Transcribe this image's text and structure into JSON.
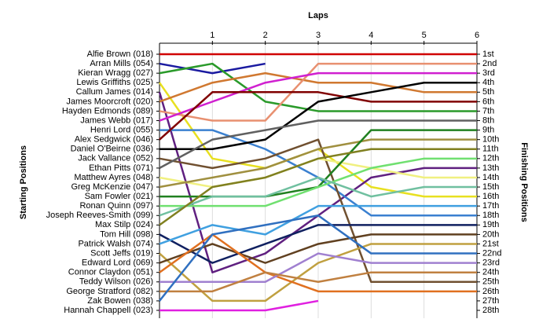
{
  "chart_data": {
    "type": "line",
    "x_label": "Laps",
    "y_label": "Starting Positions",
    "y2_label": "Finishing Positions",
    "x": [
      0,
      1,
      2,
      3,
      4,
      5,
      6
    ],
    "xlim": [
      0,
      6
    ],
    "xticks": [
      1,
      2,
      3,
      4,
      5,
      6
    ],
    "ylim": [
      1,
      28
    ],
    "y_inverted": true,
    "grid": true,
    "yticks": [
      {
        "value": 1,
        "label": "1st"
      },
      {
        "value": 2,
        "label": "2nd"
      },
      {
        "value": 3,
        "label": "3rd"
      },
      {
        "value": 4,
        "label": "4th"
      },
      {
        "value": 5,
        "label": "5th"
      },
      {
        "value": 6,
        "label": "6th"
      },
      {
        "value": 7,
        "label": "7th"
      },
      {
        "value": 8,
        "label": "8th"
      },
      {
        "value": 9,
        "label": "9th"
      },
      {
        "value": 10,
        "label": "10th"
      },
      {
        "value": 11,
        "label": "11th"
      },
      {
        "value": 12,
        "label": "12th"
      },
      {
        "value": 13,
        "label": "13th"
      },
      {
        "value": 14,
        "label": "14th"
      },
      {
        "value": 15,
        "label": "15th"
      },
      {
        "value": 16,
        "label": "16th"
      },
      {
        "value": 17,
        "label": "17th"
      },
      {
        "value": 18,
        "label": "18th"
      },
      {
        "value": 19,
        "label": "19th"
      },
      {
        "value": 20,
        "label": "20th"
      },
      {
        "value": 21,
        "label": "21st"
      },
      {
        "value": 22,
        "label": "22nd"
      },
      {
        "value": 23,
        "label": "23rd"
      },
      {
        "value": 24,
        "label": "24th"
      },
      {
        "value": 25,
        "label": "25th"
      },
      {
        "value": 26,
        "label": "26th"
      },
      {
        "value": 27,
        "label": "27th"
      },
      {
        "value": 28,
        "label": "28th"
      }
    ],
    "series": [
      {
        "name": "Alfie Brown (018)",
        "color": "#d00000",
        "values": [
          1,
          1,
          1,
          1,
          1,
          1,
          1
        ]
      },
      {
        "name": "Arran Mills (054)",
        "color": "#1a1aa0",
        "values": [
          2,
          3,
          2,
          null,
          null,
          null,
          null
        ]
      },
      {
        "name": "Kieran Wragg (027)",
        "color": "#2a9a2a",
        "values": [
          3,
          2,
          6,
          7,
          7,
          7,
          7
        ]
      },
      {
        "name": "Lewis Griffiths (025)",
        "color": "#e8e020",
        "values": [
          4,
          12,
          13,
          11,
          15,
          16,
          16
        ]
      },
      {
        "name": "Callum James (014)",
        "color": "#602080",
        "values": [
          5,
          24,
          22,
          18,
          14,
          13,
          13
        ]
      },
      {
        "name": "James Moorcroft (020)",
        "color": "#d07830",
        "values": [
          6,
          4,
          3,
          4,
          4,
          5,
          5
        ]
      },
      {
        "name": "Hayden Edmonds (089)",
        "color": "#e89070",
        "values": [
          7,
          8,
          8,
          2,
          2,
          2,
          2
        ]
      },
      {
        "name": "James Webb (017)",
        "color": "#d020d0",
        "values": [
          8,
          6,
          4,
          3,
          3,
          3,
          3
        ]
      },
      {
        "name": "Henri Lord (055)",
        "color": "#3a80d0",
        "values": [
          9,
          9,
          11,
          14,
          18,
          18,
          18
        ]
      },
      {
        "name": "Alex Sedgwick (046)",
        "color": "#800000",
        "values": [
          10,
          5,
          5,
          5,
          6,
          6,
          6
        ]
      },
      {
        "name": "Daniel O'Beirne (036)",
        "color": "#000000",
        "values": [
          11,
          11,
          10,
          6,
          5,
          4,
          4
        ]
      },
      {
        "name": "Jack Vallance (052)",
        "color": "#705030",
        "values": [
          12,
          13,
          12,
          10,
          25,
          25,
          25
        ]
      },
      {
        "name": "Ethan Pitts (071)",
        "color": "#606060",
        "values": [
          13,
          10,
          9,
          8,
          8,
          8,
          8
        ]
      },
      {
        "name": "Matthew Ayres (048)",
        "color": "#f0f080",
        "values": [
          14,
          15,
          14,
          12,
          13,
          14,
          14
        ]
      },
      {
        "name": "Greg McKenzie (047)",
        "color": "#a09040",
        "values": [
          15,
          14,
          13,
          11,
          10,
          10,
          10
        ]
      },
      {
        "name": "Sam Fowler (021)",
        "color": "#208020",
        "values": [
          16,
          16,
          16,
          15,
          9,
          9,
          9
        ]
      },
      {
        "name": "Ronan Quinn (097)",
        "color": "#70e070",
        "values": [
          17,
          17,
          17,
          15,
          13,
          12,
          12
        ]
      },
      {
        "name": "Joseph Reeves-Smith (099)",
        "color": "#70c0a0",
        "values": [
          18,
          16,
          16,
          14,
          16,
          15,
          15
        ]
      },
      {
        "name": "Max Stilp (024)",
        "color": "#808020",
        "values": [
          19,
          15,
          14,
          12,
          11,
          11,
          11
        ]
      },
      {
        "name": "Tom Hill (098)",
        "color": "#102060",
        "values": [
          20,
          23,
          21,
          19,
          19,
          19,
          19
        ]
      },
      {
        "name": "Patrick Walsh (074)",
        "color": "#40a0e0",
        "values": [
          21,
          19,
          20,
          17,
          17,
          17,
          17
        ]
      },
      {
        "name": "Scott Jeffs (019)",
        "color": "#c0a040",
        "values": [
          22,
          27,
          27,
          23,
          21,
          21,
          21
        ]
      },
      {
        "name": "Edward Lord (069)",
        "color": "#604020",
        "values": [
          23,
          21,
          23,
          21,
          20,
          20,
          20
        ]
      },
      {
        "name": "Connor Claydon (051)",
        "color": "#e07020",
        "values": [
          24,
          20,
          24,
          26,
          26,
          26,
          26
        ]
      },
      {
        "name": "Teddy Wilson (026)",
        "color": "#a080d0",
        "values": [
          25,
          25,
          25,
          22,
          23,
          23,
          23
        ]
      },
      {
        "name": "George Stratford (082)",
        "color": "#c08040",
        "values": [
          26,
          26,
          24,
          25,
          24,
          24,
          24
        ]
      },
      {
        "name": "Zak Bowen (038)",
        "color": "#3070c0",
        "values": [
          27,
          20,
          19,
          18,
          22,
          22,
          22
        ]
      },
      {
        "name": "Hannah Chappell (023)",
        "color": "#e020e0",
        "values": [
          28,
          28,
          28,
          27,
          null,
          null,
          null
        ]
      }
    ]
  }
}
